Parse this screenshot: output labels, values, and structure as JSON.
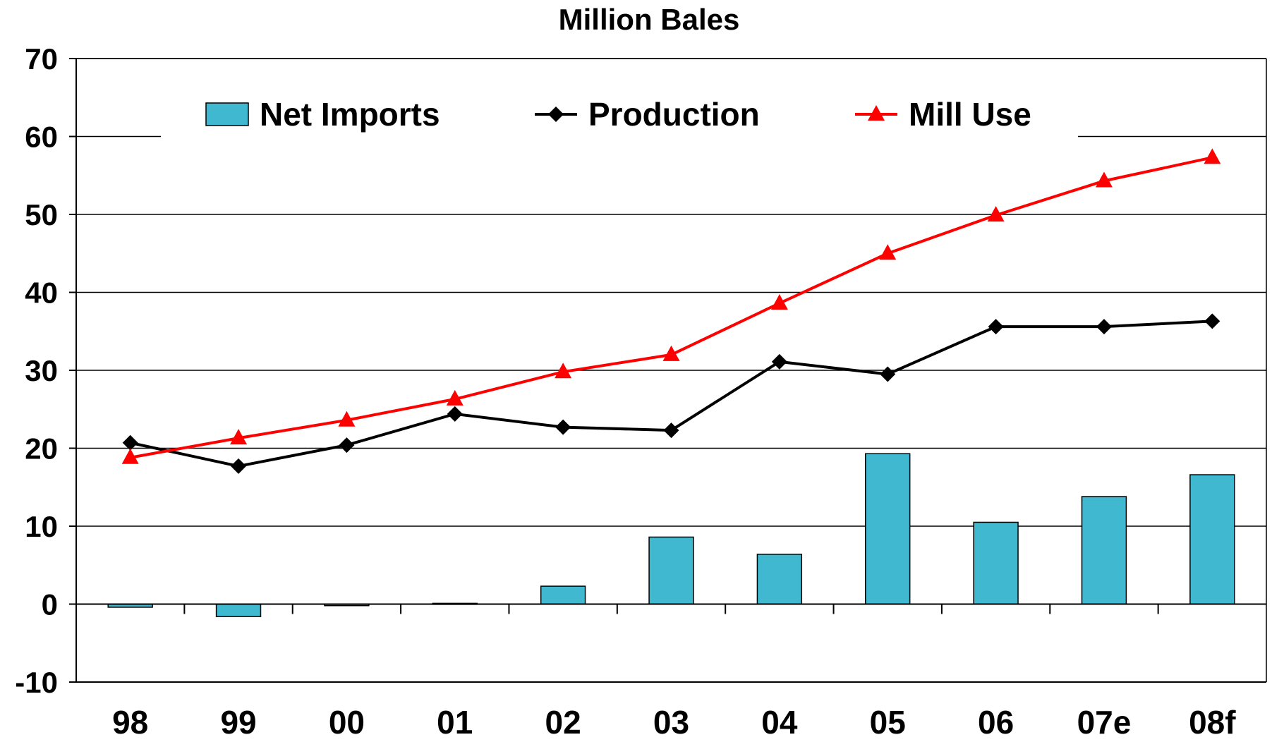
{
  "chart_data": {
    "type": "bar+line",
    "title": "Million Bales",
    "xlabel": "",
    "ylabel": "",
    "categories": [
      "98",
      "99",
      "00",
      "01",
      "02",
      "03",
      "04",
      "05",
      "06",
      "07e",
      "08f"
    ],
    "ylim": [
      -10,
      70
    ],
    "yticks": [
      -10,
      0,
      10,
      20,
      30,
      40,
      50,
      60,
      70
    ],
    "grid": true,
    "legend_position": "top",
    "series": [
      {
        "name": "Net Imports",
        "kind": "bar",
        "color": "#40B8CF",
        "values": [
          -0.4,
          -1.6,
          -0.2,
          0.1,
          2.3,
          8.6,
          6.4,
          19.3,
          10.5,
          13.8,
          16.6
        ]
      },
      {
        "name": "Production",
        "kind": "line",
        "marker": "diamond",
        "color": "#000000",
        "values": [
          20.7,
          17.7,
          20.4,
          24.4,
          22.7,
          22.3,
          31.1,
          29.5,
          35.6,
          35.6,
          36.3
        ]
      },
      {
        "name": "Mill Use",
        "kind": "line",
        "marker": "triangle",
        "color": "#FF0000",
        "values": [
          18.8,
          21.3,
          23.6,
          26.3,
          29.8,
          32.0,
          38.6,
          45.0,
          49.9,
          54.3,
          57.3
        ]
      }
    ]
  }
}
